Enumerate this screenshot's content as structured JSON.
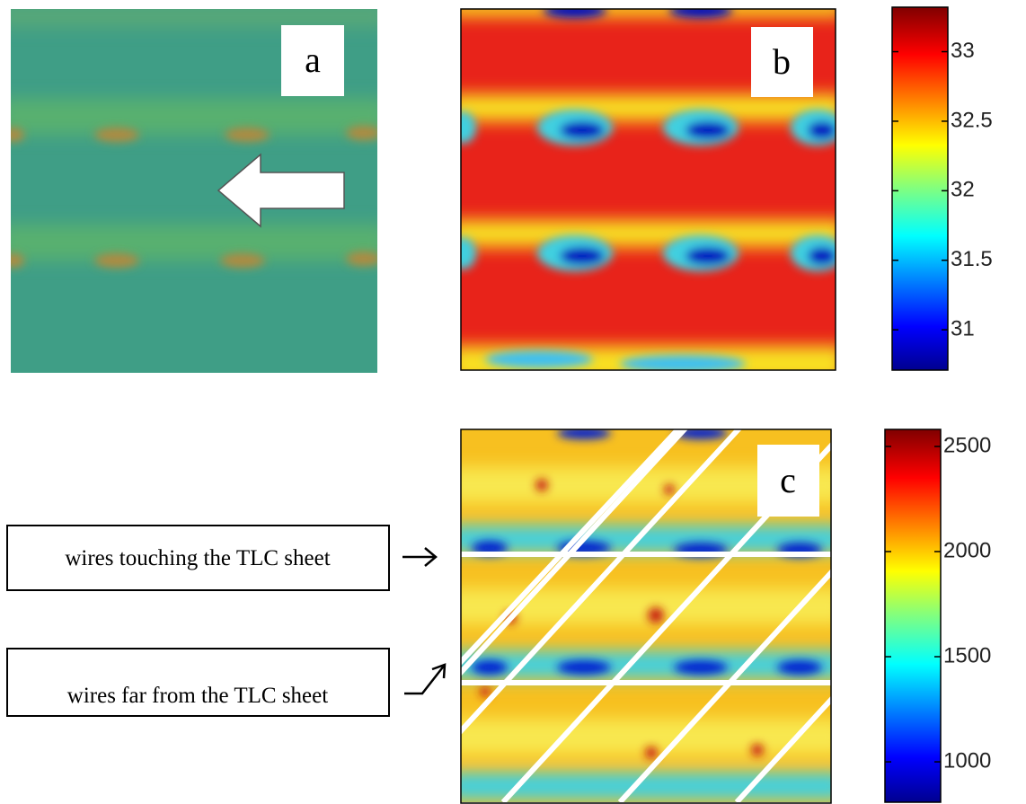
{
  "panels": {
    "a": {
      "label": "a"
    },
    "b": {
      "label": "b"
    },
    "c": {
      "label": "c"
    }
  },
  "colorbar_b": {
    "lim": [
      30.71,
      33.32
    ],
    "ticks": [
      31,
      31.5,
      32,
      32.5,
      33
    ]
  },
  "colorbar_c": {
    "lim": [
      808,
      2581
    ],
    "ticks": [
      1000,
      1500,
      2000,
      2500
    ]
  },
  "annotations": [
    "wires touching the TLC sheet",
    "wires far from the TLC sheet"
  ]
}
